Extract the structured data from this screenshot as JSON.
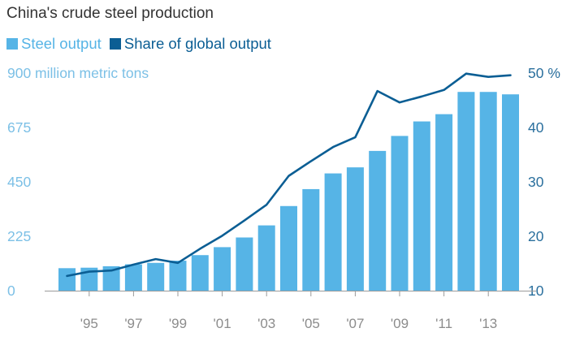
{
  "title": "China's crude steel production",
  "legend": {
    "items": [
      {
        "label": "Steel output",
        "color": "#56b4e6"
      },
      {
        "label": "Share of global output",
        "color": "#0b5e94"
      }
    ]
  },
  "chart_data": {
    "type": "bar",
    "title": "China's crude steel production",
    "x": [
      1994,
      1995,
      1996,
      1997,
      1998,
      1999,
      2000,
      2001,
      2002,
      2003,
      2004,
      2005,
      2006,
      2007,
      2008,
      2009,
      2010,
      2011,
      2012,
      2013,
      2014
    ],
    "x_tick_labels": [
      "'95",
      "'97",
      "'99",
      "'01",
      "'03",
      "'05",
      "'07",
      "'09",
      "'11",
      "'13"
    ],
    "x_tick_years": [
      1995,
      1997,
      1999,
      2001,
      2003,
      2005,
      2007,
      2009,
      2011,
      2013
    ],
    "y_left": {
      "label": "million metric tons",
      "tick_labels": [
        "0",
        "225",
        "450",
        "675",
        "900 million metric tons"
      ],
      "ticks": [
        0,
        225,
        450,
        675,
        900
      ],
      "range": [
        0,
        900
      ]
    },
    "y_right": {
      "tick_labels": [
        "10",
        "20",
        "30",
        "40",
        "50 %"
      ],
      "ticks": [
        10,
        20,
        30,
        40,
        50
      ],
      "range": [
        10,
        50
      ]
    },
    "series": [
      {
        "name": "Steel output",
        "type": "bar",
        "axis": "left",
        "color": "#56b4e6",
        "values": [
          93,
          95,
          101,
          109,
          115,
          124,
          147,
          180,
          220,
          270,
          350,
          420,
          485,
          510,
          578,
          640,
          700,
          730,
          822,
          822,
          812
        ]
      },
      {
        "name": "Share of global output",
        "type": "line",
        "axis": "right",
        "color": "#0b5e94",
        "values": [
          12.7,
          13.5,
          13.7,
          14.8,
          15.8,
          15.1,
          17.7,
          20.1,
          22.9,
          25.8,
          31.1,
          33.8,
          36.4,
          38.2,
          46.7,
          44.6,
          45.7,
          46.9,
          49.9,
          49.3,
          49.6
        ]
      }
    ],
    "grid": false
  }
}
